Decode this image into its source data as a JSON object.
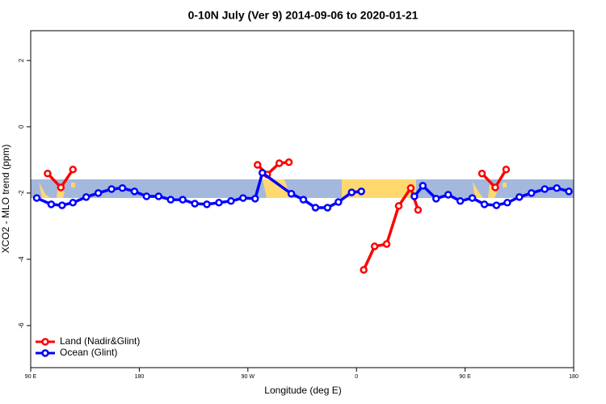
{
  "chart_data": {
    "type": "line",
    "title": "0-10N July (Ver 9)   2014-09-06 to 2020-01-21",
    "x_label": "Longitude (deg E)",
    "y_label": "XCO2 - MLO trend (ppm)",
    "xlim": [
      90,
      540
    ],
    "ylim": [
      -7.27,
      2.9
    ],
    "xticks": [
      {
        "value": 90,
        "label": "90 E"
      },
      {
        "value": 180,
        "label": "180"
      },
      {
        "value": 270,
        "label": "90 W"
      },
      {
        "value": 360,
        "label": "0"
      },
      {
        "value": 450,
        "label": "90 E"
      },
      {
        "value": 540,
        "label": "180"
      }
    ],
    "yticks": [
      -6,
      -4,
      -2,
      0,
      2
    ],
    "legend": "bottom-left",
    "series": [
      {
        "name": "Land (Nadir&Glint)",
        "color": "#ff0000",
        "x": [
          104,
          115,
          125,
          null,
          278,
          286,
          296,
          304,
          null,
          366,
          375,
          385,
          395,
          405,
          411,
          null,
          464,
          475,
          484
        ],
        "values": [
          -1.41,
          -1.83,
          -1.29,
          null,
          -1.15,
          -1.44,
          -1.1,
          -1.07,
          null,
          -4.32,
          -3.61,
          -3.54,
          -2.39,
          -1.85,
          -2.51,
          null,
          -1.41,
          -1.83,
          -1.29
        ]
      },
      {
        "name": "Ocean (Glint)",
        "color": "#0000ff",
        "x": [
          95,
          107,
          116,
          125,
          136,
          146,
          157,
          166,
          176,
          186,
          196,
          206,
          216,
          226,
          236,
          246,
          256,
          266,
          276,
          282,
          306,
          316,
          326,
          336,
          345,
          356,
          364,
          null,
          408,
          415,
          426,
          436,
          446,
          456,
          466,
          476,
          485,
          495,
          505,
          516,
          526,
          536
        ],
        "values": [
          -2.15,
          -2.34,
          -2.37,
          -2.29,
          -2.12,
          -2.0,
          -1.88,
          -1.85,
          -1.95,
          -2.1,
          -2.1,
          -2.2,
          -2.2,
          -2.32,
          -2.34,
          -2.29,
          -2.24,
          -2.15,
          -2.17,
          -1.39,
          -2.02,
          -2.2,
          -2.44,
          -2.44,
          -2.27,
          -1.98,
          -1.95,
          null,
          -2.1,
          -1.78,
          -2.17,
          -2.05,
          -2.24,
          -2.15,
          -2.34,
          -2.37,
          -2.29,
          -2.12,
          -2.0,
          -1.88,
          -1.85,
          -1.95
        ]
      }
    ]
  }
}
